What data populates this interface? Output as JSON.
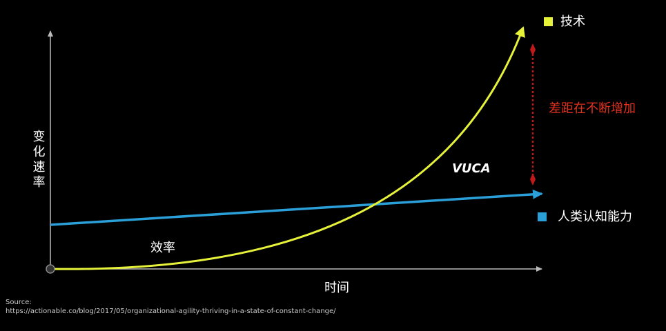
{
  "legend": {
    "items": [
      {
        "label": "技术"
      },
      {
        "label": "人类认知能力"
      }
    ]
  },
  "annotations": {
    "gap": "差距在不断增加",
    "vuca": "VUCA",
    "efficiency": "效率"
  },
  "axes": {
    "y_label": "变化速率",
    "x_label": "时间"
  },
  "source": {
    "label": "Source:",
    "url": "https://actionable.co/blog/2017/05/organizational-agility-thriving-in-a-state-of-constant-change/"
  }
}
